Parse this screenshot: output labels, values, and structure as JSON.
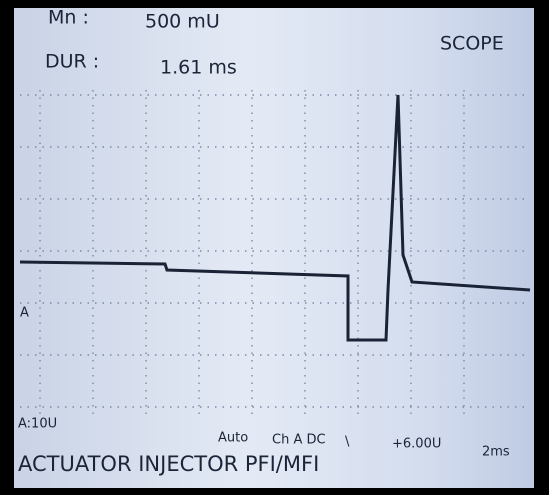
{
  "header": {
    "min_label": "Mn :",
    "min_value": "500 mU",
    "dur_label": "DUR :",
    "dur_value": "1.61 ms",
    "mode": "SCOPE"
  },
  "screen": {
    "channel_marker": "A"
  },
  "status": {
    "range": "A:10U",
    "trigger": "Auto",
    "coupling": "Ch A DC",
    "slope": "\\",
    "level": "+6.00U",
    "timebase": "2ms"
  },
  "footer": {
    "title": "ACTUATOR INJECTOR PFI/MFI"
  }
}
